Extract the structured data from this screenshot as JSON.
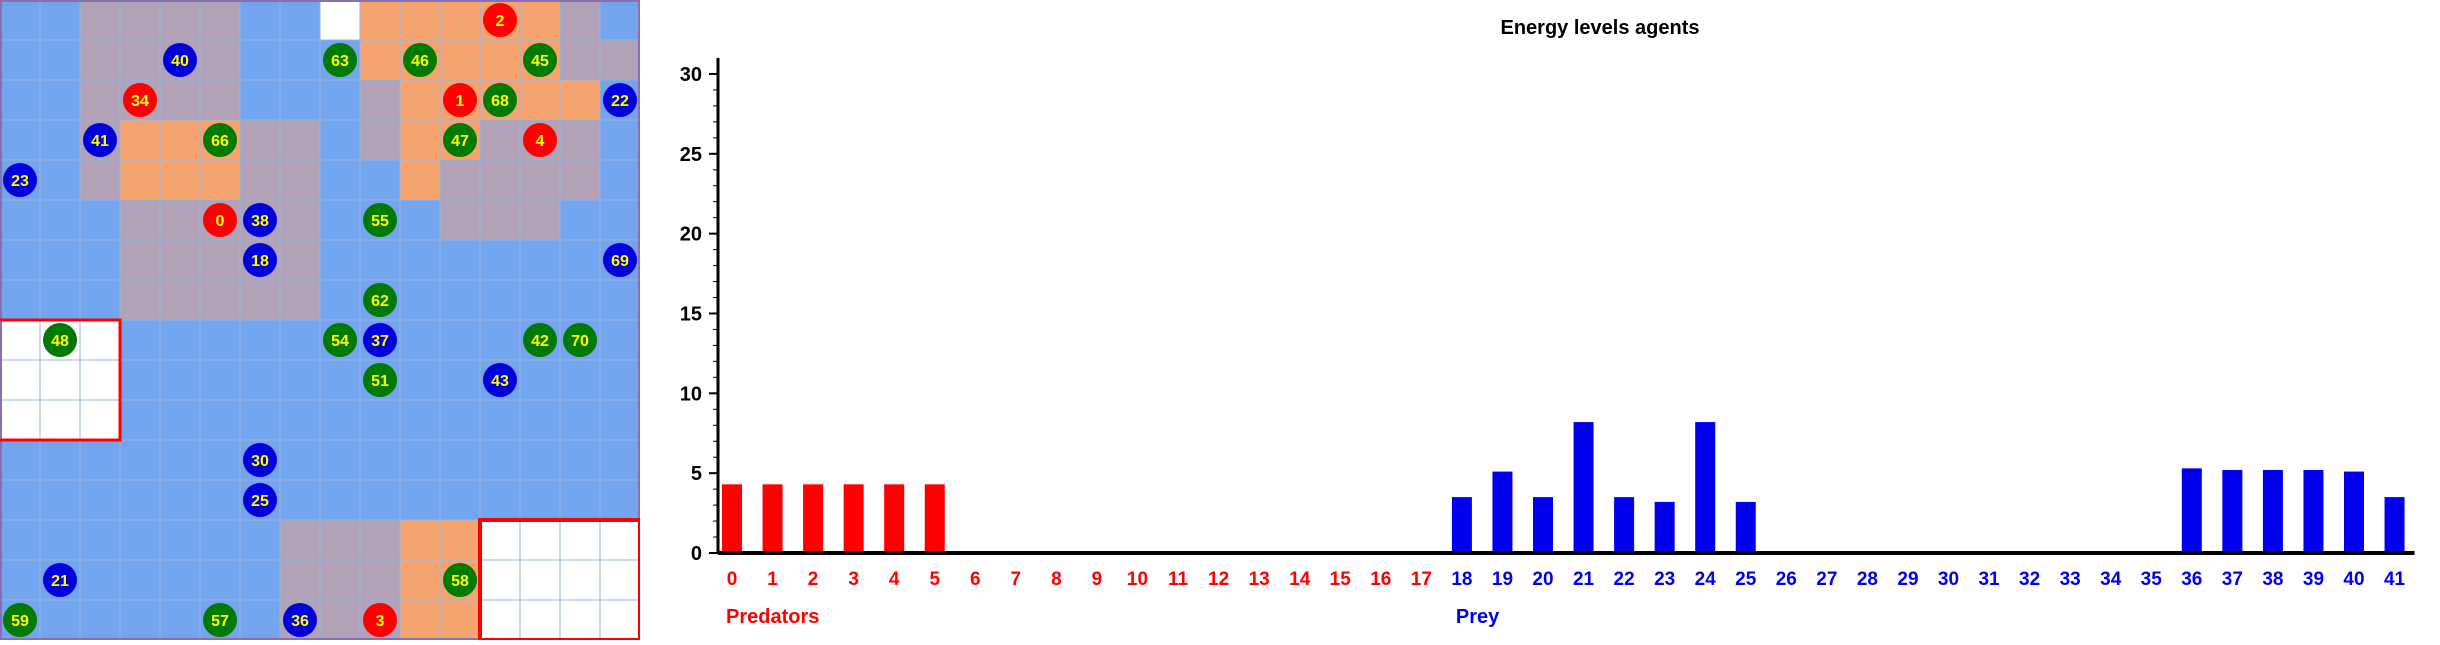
{
  "grid": {
    "rows": [
      "BBPPPPBBWOOOOOPB",
      "BBPPPPBBBOOOOOPP",
      "BBPPPPBBBPOOOOOB",
      "BBPOOOPPBPOOPPPB",
      "BBPOOOPPBBOPPPPB",
      "BBBPPPPPBBBPPPBB",
      "BBBPPPPPBBBBBBBB",
      "BBBPPPPPBBBBBBBB",
      "WWWBBBBBBBBBBBBB",
      "WWWBBBBBBBBBBBBB",
      "WWWBBBBBBBBBBBBB",
      "BBBBBBBBBBBBBBBB",
      "BBBBBBBBBBBBBBBB",
      "BBBBBBBPPPOOWWWW",
      "BBBBBBBPPPOOWWWW",
      "BBBBBBBPPPOOWWWW"
    ],
    "tile_colors": {
      "B": "#73a5ee",
      "P": "#b1a2b8",
      "O": "#f5a36f",
      "W": "#ffffff"
    },
    "agents": [
      {
        "label": "2",
        "kind": "predator",
        "col": 12,
        "row": 0
      },
      {
        "label": "40",
        "kind": "prey",
        "col": 4,
        "row": 1
      },
      {
        "label": "63",
        "kind": "prey-green",
        "col": 8,
        "row": 1
      },
      {
        "label": "46",
        "kind": "prey-green",
        "col": 10,
        "row": 1
      },
      {
        "label": "45",
        "kind": "prey-green",
        "col": 13,
        "row": 1
      },
      {
        "label": "34",
        "kind": "predator",
        "col": 3,
        "row": 2
      },
      {
        "label": "1",
        "kind": "predator",
        "col": 11,
        "row": 2
      },
      {
        "label": "68",
        "kind": "prey-green",
        "col": 12,
        "row": 2
      },
      {
        "label": "22",
        "kind": "prey",
        "col": 15,
        "row": 2
      },
      {
        "label": "41",
        "kind": "prey",
        "col": 2,
        "row": 3
      },
      {
        "label": "66",
        "kind": "prey-green",
        "col": 5,
        "row": 3
      },
      {
        "label": "47",
        "kind": "prey-green",
        "col": 11,
        "row": 3
      },
      {
        "label": "4",
        "kind": "predator",
        "col": 13,
        "row": 3
      },
      {
        "label": "23",
        "kind": "prey",
        "col": 0,
        "row": 4
      },
      {
        "label": "0",
        "kind": "predator",
        "col": 5,
        "row": 5
      },
      {
        "label": "38",
        "kind": "prey",
        "col": 6,
        "row": 5
      },
      {
        "label": "55",
        "kind": "prey-green",
        "col": 9,
        "row": 5
      },
      {
        "label": "18",
        "kind": "prey",
        "col": 6,
        "row": 6
      },
      {
        "label": "69",
        "kind": "prey",
        "col": 15,
        "row": 6
      },
      {
        "label": "62",
        "kind": "prey-green",
        "col": 9,
        "row": 7
      },
      {
        "label": "48",
        "kind": "prey-green",
        "col": 1,
        "row": 8
      },
      {
        "label": "54",
        "kind": "prey-green",
        "col": 8,
        "row": 8
      },
      {
        "label": "37",
        "kind": "prey",
        "col": 9,
        "row": 8
      },
      {
        "label": "42",
        "kind": "prey-green",
        "col": 13,
        "row": 8
      },
      {
        "label": "70",
        "kind": "prey-green",
        "col": 14,
        "row": 8
      },
      {
        "label": "51",
        "kind": "prey-green",
        "col": 9,
        "row": 9
      },
      {
        "label": "43",
        "kind": "prey",
        "col": 12,
        "row": 9
      },
      {
        "label": "30",
        "kind": "prey",
        "col": 6,
        "row": 11
      },
      {
        "label": "25",
        "kind": "prey",
        "col": 6,
        "row": 12
      },
      {
        "label": "21",
        "kind": "prey",
        "col": 1,
        "row": 14
      },
      {
        "label": "58",
        "kind": "prey-green",
        "col": 11,
        "row": 14
      },
      {
        "label": "59",
        "kind": "prey-green",
        "col": 0,
        "row": 15
      },
      {
        "label": "57",
        "kind": "prey-green",
        "col": 5,
        "row": 15
      },
      {
        "label": "36",
        "kind": "prey",
        "col": 7,
        "row": 15
      },
      {
        "label": "3",
        "kind": "predator",
        "col": 9,
        "row": 15
      }
    ],
    "agent_colors": {
      "predator": "#ff0000",
      "prey": "#0000dd",
      "prey-green": "#007a00",
      "label": "#ffff00"
    }
  },
  "chart_data": {
    "type": "bar",
    "title": "Energy levels agents",
    "categories": [
      "0",
      "1",
      "2",
      "3",
      "4",
      "5",
      "6",
      "7",
      "8",
      "9",
      "10",
      "11",
      "12",
      "13",
      "14",
      "15",
      "16",
      "17",
      "18",
      "19",
      "20",
      "21",
      "22",
      "23",
      "24",
      "25",
      "26",
      "27",
      "28",
      "29",
      "30",
      "31",
      "32",
      "33",
      "34",
      "35",
      "36",
      "37",
      "38",
      "39",
      "40",
      "41"
    ],
    "values": [
      4.3,
      4.3,
      4.3,
      4.3,
      4.3,
      4.3,
      0,
      0,
      0,
      0,
      0,
      0,
      0,
      0,
      0,
      0,
      0,
      0,
      3.5,
      5.1,
      3.5,
      8.2,
      3.5,
      3.2,
      8.2,
      3.2,
      0,
      0,
      0,
      0,
      0,
      0,
      0,
      0,
      0,
      0,
      5.3,
      5.2,
      5.2,
      5.2,
      5.1,
      3.5
    ],
    "ylim": [
      0,
      31
    ],
    "yticks": [
      0,
      5,
      10,
      15,
      20,
      25,
      30
    ],
    "groups": [
      {
        "name": "Predators",
        "from": 0,
        "to": 17,
        "color": "#ff0000"
      },
      {
        "name": "Prey",
        "from": 18,
        "to": 41,
        "color": "#0000ee"
      }
    ]
  }
}
